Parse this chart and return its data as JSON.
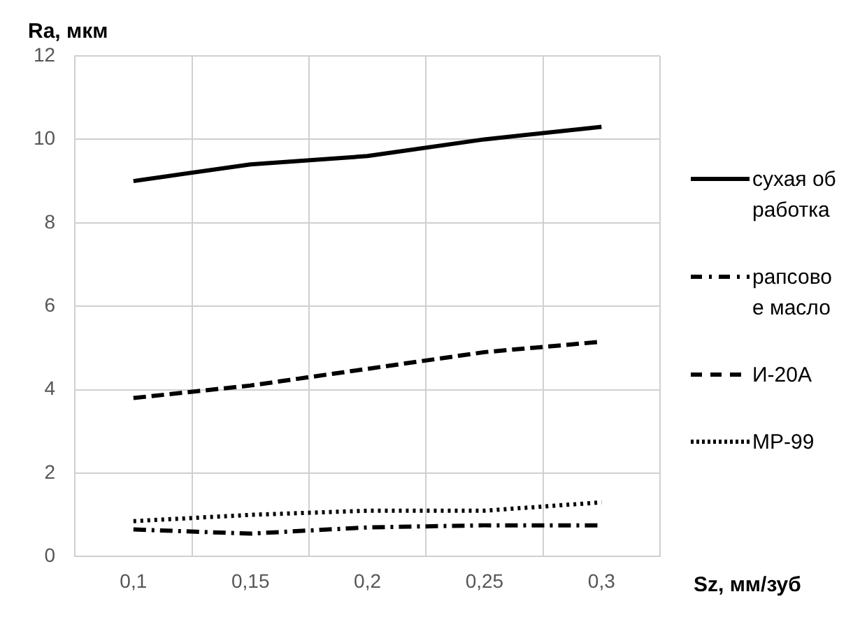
{
  "chart_data": {
    "type": "line",
    "xlabel": "Sz, мм/зуб",
    "ylabel": "Ra, мкм",
    "categories": [
      "0,1",
      "0,15",
      "0,2",
      "0,25",
      "0,3"
    ],
    "series": [
      {
        "name": "сухая обработка",
        "color": "#000000",
        "line_style": "solid",
        "values": [
          9.0,
          9.4,
          9.6,
          10.0,
          10.3
        ]
      },
      {
        "name": "рапсовое масло",
        "color": "#000000",
        "line_style": "dashdot",
        "values": [
          0.65,
          0.55,
          0.7,
          0.75,
          0.75
        ]
      },
      {
        "name": "И-20А",
        "color": "#000000",
        "line_style": "dashed",
        "values": [
          3.8,
          4.1,
          4.5,
          4.9,
          5.15
        ]
      },
      {
        "name": "МР-99",
        "color": "#000000",
        "line_style": "dotted",
        "values": [
          0.85,
          1.0,
          1.1,
          1.1,
          1.3
        ]
      }
    ],
    "ylim": [
      0,
      12
    ],
    "yticks": [
      0,
      2,
      4,
      6,
      8,
      10,
      12
    ],
    "grid": true,
    "legend": "right",
    "marker": "none"
  }
}
